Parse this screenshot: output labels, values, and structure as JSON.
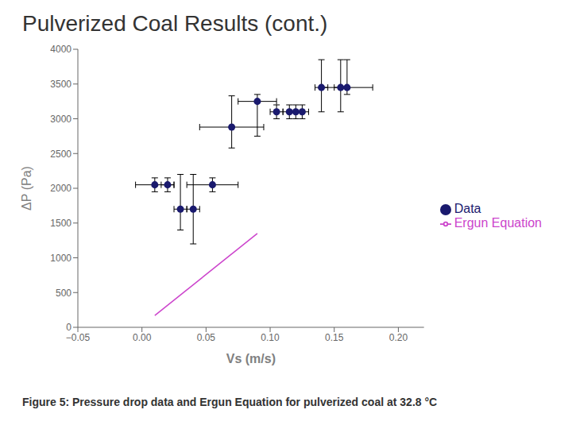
{
  "chart_data": {
    "type": "scatter",
    "title": "Pulverized Coal Results (cont.)",
    "caption": "Figure 5: Pressure drop data and Ergun Equation for pulverized coal at 32.8 °C",
    "x_label": "Vs (m/s)",
    "y_label": "ΔP (Pa)",
    "xlim": [
      -0.05,
      0.22
    ],
    "ylim": [
      0,
      4000
    ],
    "xticks": [
      {
        "value": -0.05,
        "label": "−0.05"
      },
      {
        "value": 0,
        "label": "0.00"
      },
      {
        "value": 0.05,
        "label": "0.05"
      },
      {
        "value": 0.1,
        "label": "0.10"
      },
      {
        "value": 0.15,
        "label": "0.15"
      },
      {
        "value": 0.2,
        "label": "0.20"
      }
    ],
    "yticks": [
      0,
      500,
      1000,
      1500,
      2000,
      2500,
      3000,
      3500,
      4000
    ],
    "grid": false,
    "legend": "right",
    "series": [
      {
        "name": "Data",
        "type": "scatter",
        "marker": "circle",
        "color": "#1a1a6e",
        "x": [
          0.01,
          0.02,
          0.03,
          0.04,
          0.055,
          0.07,
          0.09,
          0.105,
          0.115,
          0.12,
          0.125,
          0.14,
          0.155,
          0.16
        ],
        "values": [
          2050,
          2050,
          1700,
          1700,
          2050,
          2880,
          3250,
          3100,
          3100,
          3100,
          3100,
          3450,
          3450,
          3450
        ],
        "xerr_lo": [
          0.015,
          0.005,
          0.005,
          0.005,
          0.02,
          0.025,
          0.015,
          0.005,
          0.005,
          0.005,
          0.005,
          0.005,
          0.005,
          0.02
        ],
        "xerr_hi": [
          0.015,
          0.005,
          0.005,
          0.005,
          0.02,
          0.025,
          0.015,
          0.005,
          0.005,
          0.005,
          0.005,
          0.005,
          0.005,
          0.02
        ],
        "yerr_lo": [
          100,
          100,
          300,
          500,
          100,
          300,
          500,
          100,
          100,
          100,
          100,
          350,
          350,
          100
        ],
        "yerr_hi": [
          100,
          100,
          500,
          500,
          100,
          450,
          100,
          100,
          100,
          100,
          100,
          400,
          400,
          400
        ]
      },
      {
        "name": "Ergun Equation",
        "type": "line",
        "line_style": "solid",
        "color": "#cc44cc",
        "x": [
          0.01,
          0.09
        ],
        "values": [
          170,
          1350
        ]
      }
    ]
  }
}
